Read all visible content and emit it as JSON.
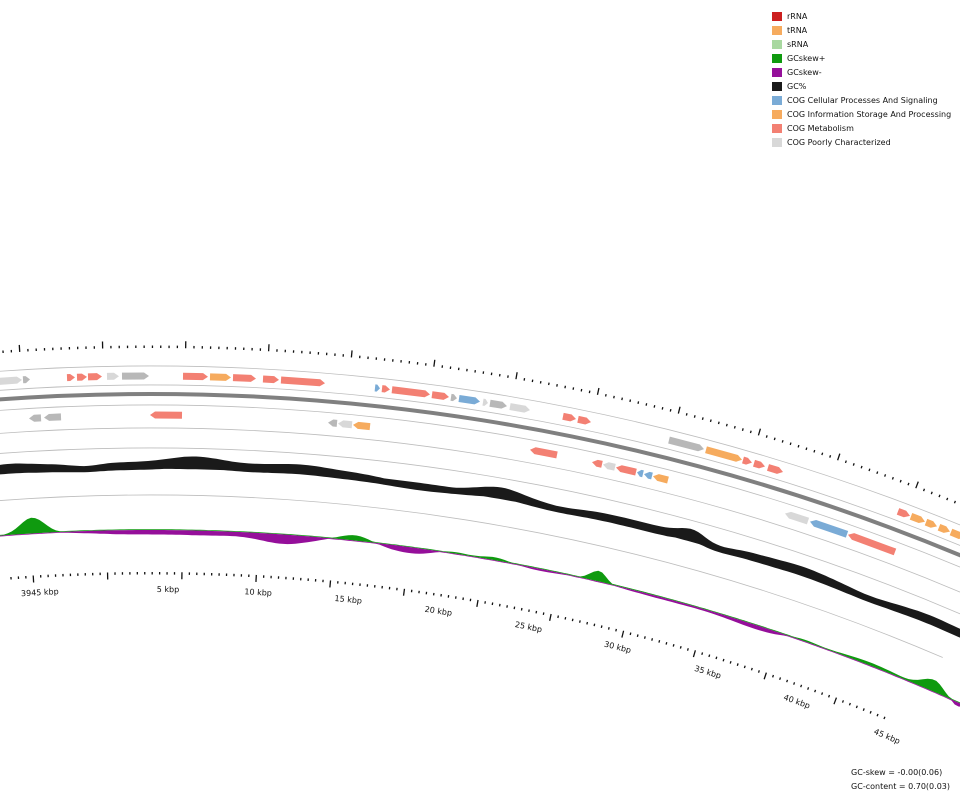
{
  "legend": [
    {
      "label": "rRNA",
      "color": "#cc1f1f"
    },
    {
      "label": "tRNA",
      "color": "#f6ab5e"
    },
    {
      "label": "sRNA",
      "color": "#a8d8a0"
    },
    {
      "label": "GCskew+",
      "color": "#0f9a0f"
    },
    {
      "label": "GCskew-",
      "color": "#950f9a"
    },
    {
      "label": "GC%",
      "color": "#1a1a1a"
    },
    {
      "label": "COG Cellular Processes And Signaling",
      "color": "#7aabd6"
    },
    {
      "label": "COG Information Storage And Processing",
      "color": "#f6ab5e"
    },
    {
      "label": "COG Metabolism",
      "color": "#f38073"
    },
    {
      "label": "COG Poorly Characterized",
      "color": "#d8d8d8"
    }
  ],
  "scale_labels": [
    "3945 kbp",
    "5 kbp",
    "10 kbp",
    "15 kbp",
    "20 kbp",
    "25 kbp",
    "30 kbp",
    "35 kbp",
    "40 kbp",
    "45 kbp"
  ],
  "stats": {
    "gc_skew": "GC-skew = -0.00(0.06)",
    "gc_content": "GC-content = 0.70(0.03)"
  },
  "colors": {
    "backbone": "#808080",
    "track_line": "#bdbdbd",
    "tick": "#111111",
    "poorly_dark": "#b8b8b8"
  }
}
